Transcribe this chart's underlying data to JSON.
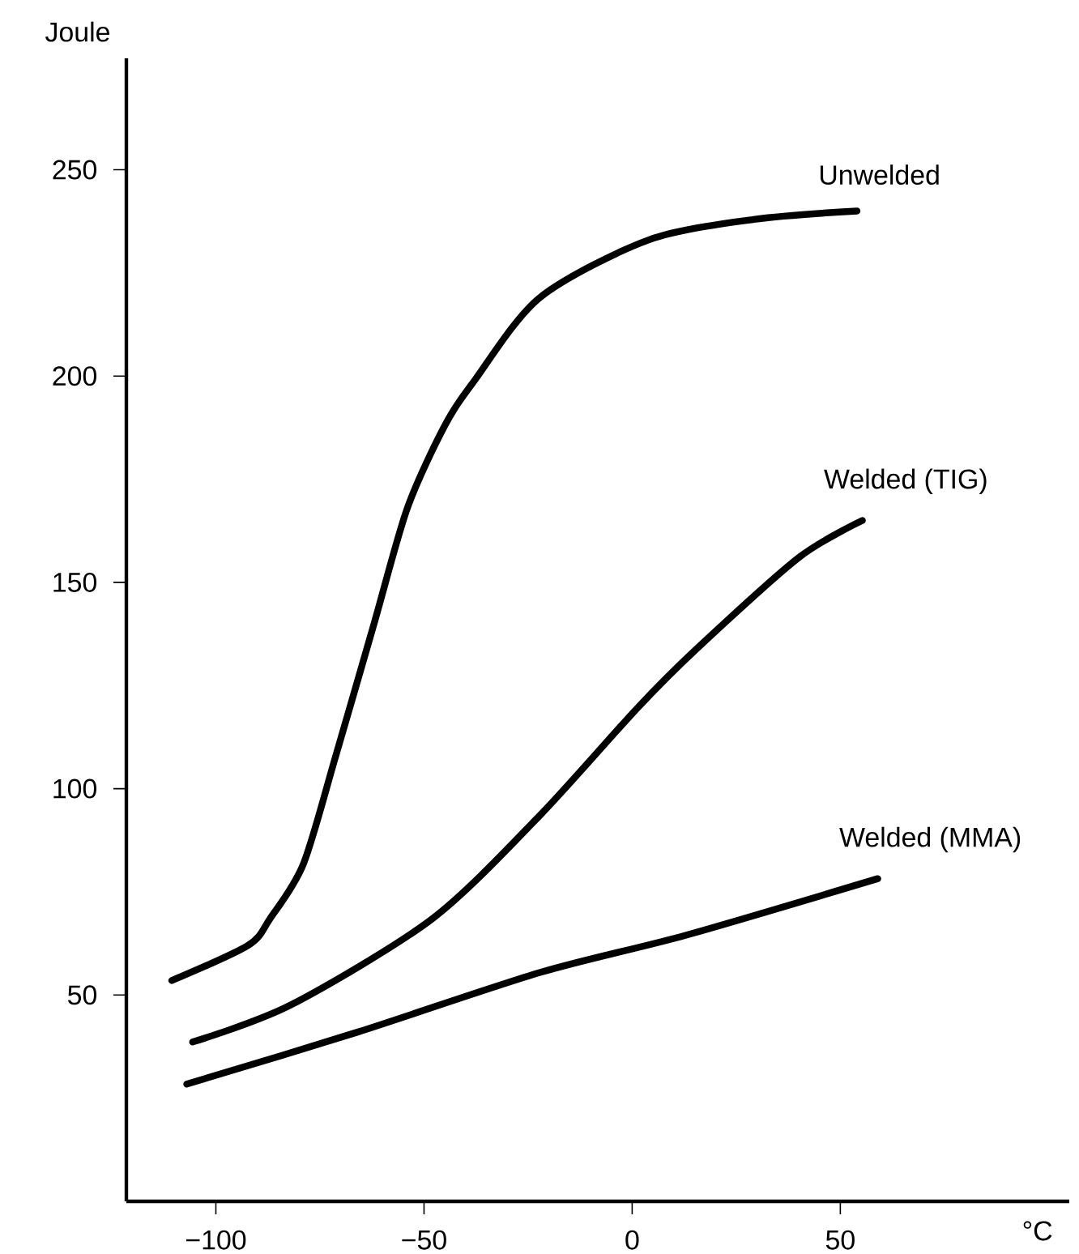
{
  "chart_data": {
    "type": "line",
    "xlabel": "°C",
    "ylabel": "Joule",
    "xlim": [
      -121.5,
      105
    ],
    "ylim": [
      0,
      277
    ],
    "xticks": [
      {
        "value": -100,
        "label": "−100"
      },
      {
        "value": -50,
        "label": "−50"
      },
      0,
      50
    ],
    "yticks": [
      50,
      100,
      150,
      200,
      250
    ],
    "series": [
      {
        "name": "Unwelded",
        "color": "#000000",
        "x": [
          -110.6,
          -92.3,
          -87,
          -79,
          -71.3,
          -62,
          -54,
          -45,
          -37.8,
          -22.2,
          4,
          29.6,
          54
        ],
        "values": [
          53.5,
          62,
          68.5,
          81.7,
          107.6,
          140,
          168,
          188,
          199,
          219,
          233,
          238,
          240
        ]
      },
      {
        "name": "Welded (TIG)",
        "color": "#000000",
        "x": [
          -105.6,
          -82,
          -48,
          -22.2,
          1.2,
          15.6,
          40,
          55.3
        ],
        "values": [
          38.6,
          47.6,
          68.5,
          93.5,
          119.5,
          134,
          156,
          165
        ]
      },
      {
        "name": "Welded (MMA)",
        "color": "#000000",
        "x": [
          -107,
          -66,
          -22,
          12.9,
          59
        ],
        "values": [
          28.4,
          41,
          55.5,
          64.5,
          78.2
        ]
      }
    ]
  }
}
